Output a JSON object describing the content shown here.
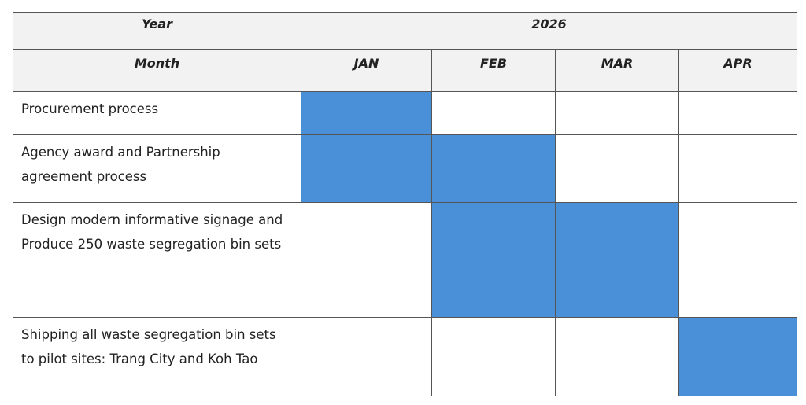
{
  "header": {
    "year_label": "Year",
    "year": "2026",
    "month_label": "Month",
    "months": [
      "JAN",
      "FEB",
      "MAR",
      "APR"
    ]
  },
  "fill_color": "#4a90d9",
  "rows": [
    {
      "task": "Procurement process",
      "active": [
        true,
        false,
        false,
        false
      ]
    },
    {
      "task": "Agency award and Partnership agreement process",
      "active": [
        true,
        true,
        false,
        false
      ]
    },
    {
      "task": "Design modern informative signage and Produce 250 waste segregation bin sets",
      "active": [
        false,
        true,
        true,
        false
      ]
    },
    {
      "task": "Shipping all waste segregation bin sets to pilot sites: Trang City and Koh Tao",
      "active": [
        false,
        false,
        false,
        true
      ]
    }
  ]
}
